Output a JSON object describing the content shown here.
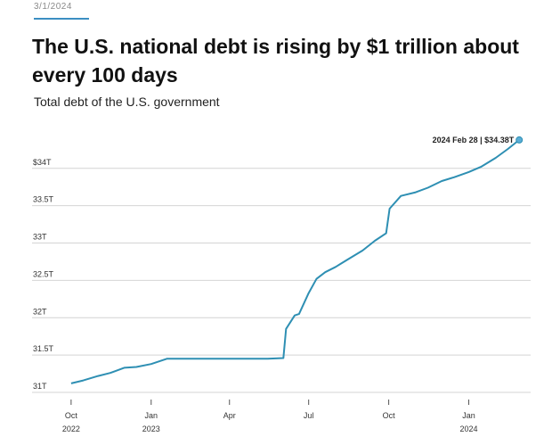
{
  "header": {
    "date": "3/1/2024",
    "title": "The U.S. national debt is rising by $1 trillion about every 100 days",
    "subtitle": "Total debt of the U.S. government"
  },
  "colors": {
    "line": "#2e8fb3",
    "accent": "#3c8fc2"
  },
  "chart_data": {
    "type": "line",
    "title": "The U.S. national debt is rising by $1 trillion about every 100 days",
    "subtitle": "Total debt of the U.S. government",
    "xlabel": "",
    "ylabel": "",
    "ylim": [
      31,
      34.2
    ],
    "xlim": [
      "2022-09-25",
      "2024-03-08"
    ],
    "grid": true,
    "y_ticks": [
      {
        "value": 31,
        "label": "31T"
      },
      {
        "value": 31.5,
        "label": "31.5T"
      },
      {
        "value": 32,
        "label": "32T"
      },
      {
        "value": 32.5,
        "label": "32.5T"
      },
      {
        "value": 33,
        "label": "33T"
      },
      {
        "value": 33.5,
        "label": "33.5T"
      },
      {
        "value": 34,
        "label": "$34T"
      }
    ],
    "x_ticks": [
      {
        "date": "2022-10-01",
        "month": "Oct",
        "year": "2022"
      },
      {
        "date": "2023-01-01",
        "month": "Jan",
        "year": "2023"
      },
      {
        "date": "2023-04-01",
        "month": "Apr",
        "year": ""
      },
      {
        "date": "2023-07-01",
        "month": "Jul",
        "year": ""
      },
      {
        "date": "2023-10-01",
        "month": "Oct",
        "year": ""
      },
      {
        "date": "2024-01-01",
        "month": "Jan",
        "year": "2024"
      }
    ],
    "series": [
      {
        "points": [
          [
            "2022-10-01",
            31.12
          ],
          [
            "2022-10-15",
            31.16
          ],
          [
            "2022-11-01",
            31.22
          ],
          [
            "2022-11-15",
            31.26
          ],
          [
            "2022-12-01",
            31.33
          ],
          [
            "2022-12-15",
            31.34
          ],
          [
            "2023-01-01",
            31.38
          ],
          [
            "2023-01-19",
            31.45
          ],
          [
            "2023-02-15",
            31.45
          ],
          [
            "2023-03-15",
            31.45
          ],
          [
            "2023-04-15",
            31.45
          ],
          [
            "2023-05-15",
            31.45
          ],
          [
            "2023-06-02",
            31.46
          ],
          [
            "2023-06-05",
            31.85
          ],
          [
            "2023-06-15",
            32.03
          ],
          [
            "2023-06-20",
            32.05
          ],
          [
            "2023-07-01",
            32.33
          ],
          [
            "2023-07-10",
            32.52
          ],
          [
            "2023-07-20",
            32.61
          ],
          [
            "2023-08-01",
            32.68
          ],
          [
            "2023-08-15",
            32.78
          ],
          [
            "2023-09-01",
            32.9
          ],
          [
            "2023-09-15",
            33.03
          ],
          [
            "2023-09-28",
            33.13
          ],
          [
            "2023-10-02",
            33.46
          ],
          [
            "2023-10-15",
            33.63
          ],
          [
            "2023-11-01",
            33.68
          ],
          [
            "2023-11-15",
            33.74
          ],
          [
            "2023-12-01",
            33.83
          ],
          [
            "2023-12-15",
            33.88
          ],
          [
            "2024-01-01",
            33.95
          ],
          [
            "2024-01-15",
            34.02
          ],
          [
            "2024-02-01",
            34.14
          ],
          [
            "2024-02-15",
            34.26
          ],
          [
            "2024-02-28",
            34.38
          ]
        ]
      }
    ],
    "annotations": [
      {
        "date": "2024-02-28",
        "value": 34.38,
        "text": "2024 Feb 28 | $34.38T"
      }
    ]
  }
}
